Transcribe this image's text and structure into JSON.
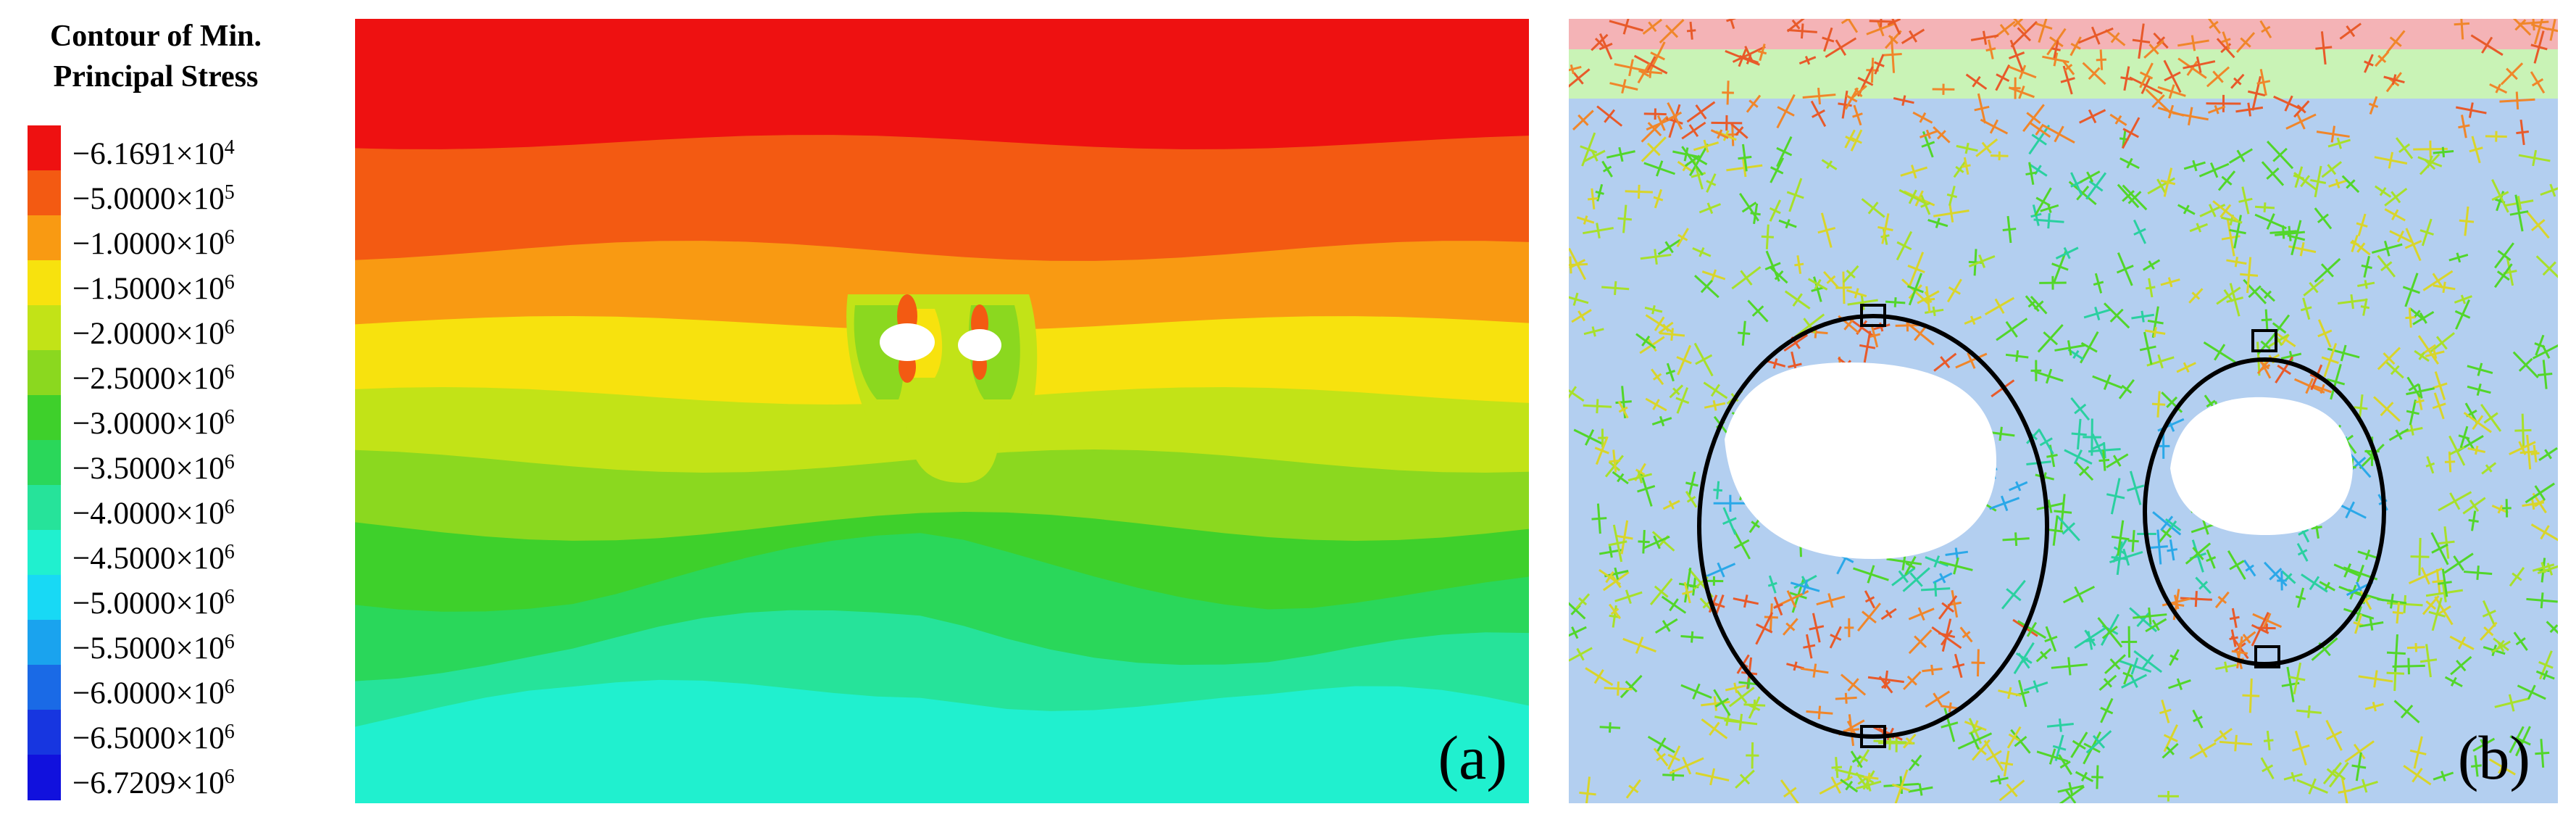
{
  "legend": {
    "title_line1": "Contour of Min.",
    "title_line2": "Principal Stress",
    "entries": [
      {
        "mantissa": "−6.1691",
        "exponent": "4",
        "color": "#ee1111"
      },
      {
        "mantissa": "−5.0000",
        "exponent": "5",
        "color": "#f35a12"
      },
      {
        "mantissa": "−1.0000",
        "exponent": "6",
        "color": "#f99a12"
      },
      {
        "mantissa": "−1.5000",
        "exponent": "6",
        "color": "#f7e20e"
      },
      {
        "mantissa": "−2.0000",
        "exponent": "6",
        "color": "#c2e317"
      },
      {
        "mantissa": "−2.5000",
        "exponent": "6",
        "color": "#8bd81f"
      },
      {
        "mantissa": "−3.0000",
        "exponent": "6",
        "color": "#3ed02b"
      },
      {
        "mantissa": "−3.5000",
        "exponent": "6",
        "color": "#2ad75a"
      },
      {
        "mantissa": "−4.0000",
        "exponent": "6",
        "color": "#26e39a"
      },
      {
        "mantissa": "−4.5000",
        "exponent": "6",
        "color": "#20f0cf"
      },
      {
        "mantissa": "−5.0000",
        "exponent": "6",
        "color": "#18d9f5"
      },
      {
        "mantissa": "−5.5000",
        "exponent": "6",
        "color": "#1aa3ee"
      },
      {
        "mantissa": "−6.0000",
        "exponent": "6",
        "color": "#1a6ae6"
      },
      {
        "mantissa": "−6.5000",
        "exponent": "6",
        "color": "#1736e0"
      },
      {
        "mantissa": "−6.7209",
        "exponent": "6",
        "color": "#1111dd"
      }
    ],
    "times_sign": "×",
    "base": "10"
  },
  "panel_a": {
    "label": "(a)"
  },
  "panel_b": {
    "label": "(b)"
  },
  "colors": {
    "ground_blue": "#b3cff0",
    "top_pink": "#f4b3b6",
    "top_green": "#c9f3b6",
    "outline": "#000000"
  }
}
